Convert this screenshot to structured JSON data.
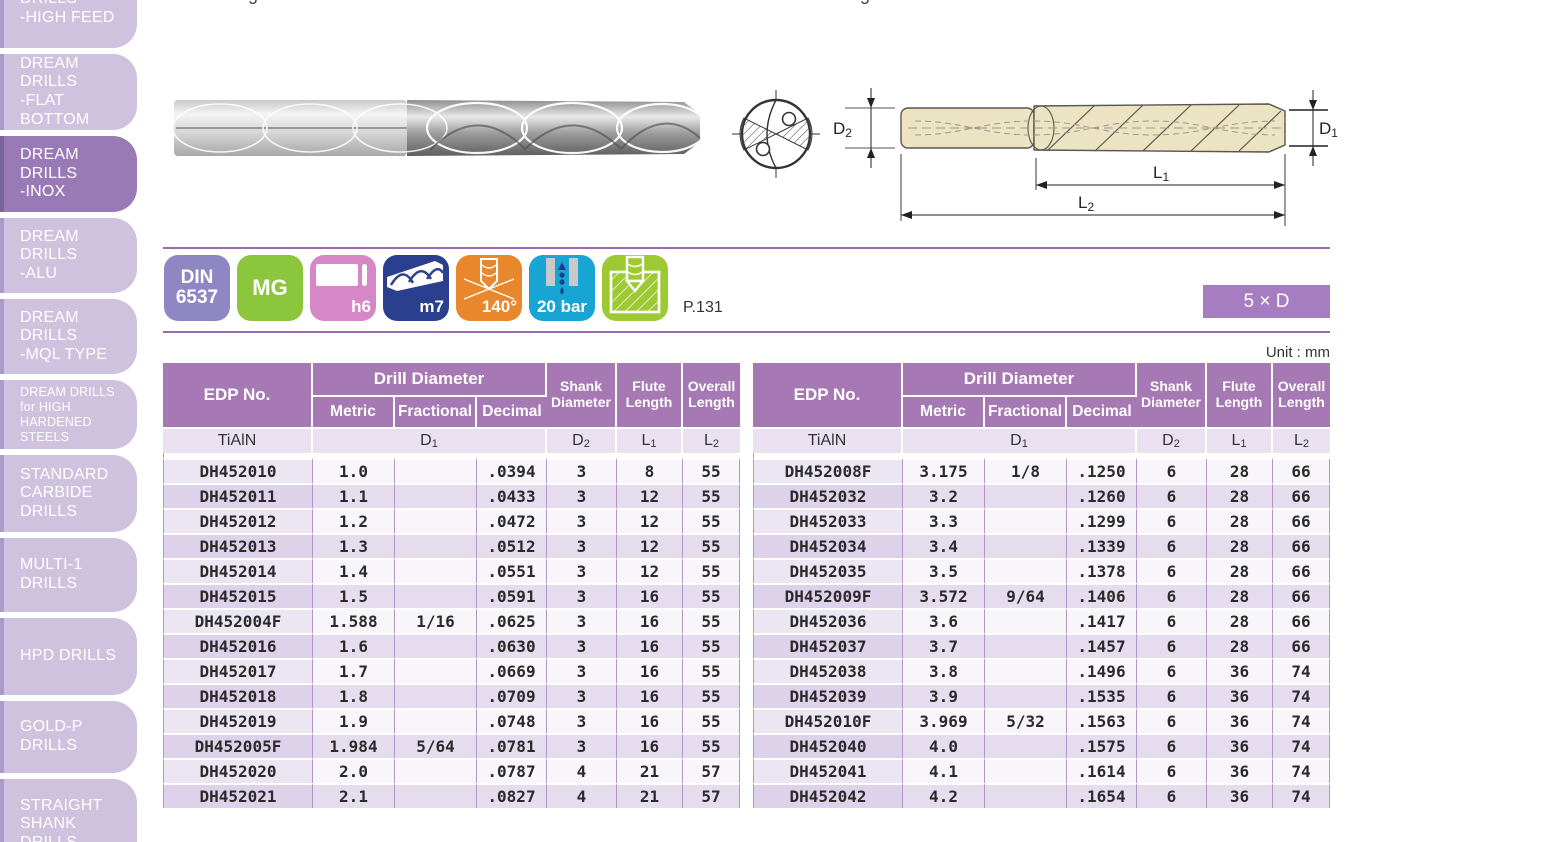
{
  "sidebar": {
    "items": [
      {
        "label": "DRILLS\n-HIGH FEED"
      },
      {
        "label": "DREAM\nDRILLS\n-FLAT BOTTOM"
      },
      {
        "label": "DREAM\nDRILLS\n-INOX",
        "active": true
      },
      {
        "label": "DREAM\nDRILLS\n-ALU"
      },
      {
        "label": "DREAM\nDRILLS\n-MQL TYPE"
      },
      {
        "label": "DREAM DRILLS\nfor HIGH\nHARDENED\nSTEELS",
        "small": true
      },
      {
        "label": "STANDARD\nCARBIDE\nDRILLS"
      },
      {
        "label": "MULTI-1\nDRILLS"
      },
      {
        "label": "HPD DRILLS"
      },
      {
        "label": "GOLD-P\nDRILLS"
      },
      {
        "label": "STRAIGHT\nSHANK\nDRILLS"
      }
    ]
  },
  "artifacts": {
    "cropped_fragments": [
      "g",
      "g"
    ]
  },
  "badges": [
    {
      "icon": "din-6537",
      "label": "DIN\n6537",
      "color": "#8e87c4"
    },
    {
      "icon": "mg-grade",
      "label": "MG",
      "color": "#8cc63c"
    },
    {
      "icon": "shank-tolerance",
      "label": "h6",
      "color": "#d687c5"
    },
    {
      "icon": "drill-tolerance",
      "label": "m7",
      "color": "#2b3f8f"
    },
    {
      "icon": "point-angle",
      "label": "140°",
      "color": "#e8872b"
    },
    {
      "icon": "coolant-pressure",
      "label": "20 bar",
      "color": "#18a5d4"
    },
    {
      "icon": "pocket-drilling",
      "label": "",
      "color": "#9dc933"
    }
  ],
  "page_ref": "P.131",
  "size_badge": "5 × D",
  "unit_label": "Unit : mm",
  "diagram_labels": {
    "d2": {
      "base": "D",
      "sub": "2"
    },
    "d1": {
      "base": "D",
      "sub": "1"
    },
    "l1": {
      "base": "L",
      "sub": "1"
    },
    "l2": {
      "base": "L",
      "sub": "2"
    }
  },
  "table_header": {
    "edp": "EDP No.",
    "drill_diameter": "Drill Diameter",
    "metric": "Metric",
    "fractional": "Fractional",
    "decimal": "Decimal",
    "shank": "Shank\nDiameter",
    "flute": "Flute\nLength",
    "overall": "Overall\nLength",
    "coating": "TiAlN",
    "d1": {
      "base": "D",
      "sub": "1"
    },
    "d2": {
      "base": "D",
      "sub": "2"
    },
    "l1": {
      "base": "L",
      "sub": "1"
    },
    "l2": {
      "base": "L",
      "sub": "2"
    }
  },
  "tables": {
    "left": {
      "rows": [
        [
          "DH452010",
          "1.0",
          "",
          ".0394",
          "3",
          "8",
          "55"
        ],
        [
          "DH452011",
          "1.1",
          "",
          ".0433",
          "3",
          "12",
          "55"
        ],
        [
          "DH452012",
          "1.2",
          "",
          ".0472",
          "3",
          "12",
          "55"
        ],
        [
          "DH452013",
          "1.3",
          "",
          ".0512",
          "3",
          "12",
          "55"
        ],
        [
          "DH452014",
          "1.4",
          "",
          ".0551",
          "3",
          "12",
          "55"
        ],
        [
          "DH452015",
          "1.5",
          "",
          ".0591",
          "3",
          "16",
          "55"
        ],
        [
          "DH452004F",
          "1.588",
          "1/16",
          ".0625",
          "3",
          "16",
          "55"
        ],
        [
          "DH452016",
          "1.6",
          "",
          ".0630",
          "3",
          "16",
          "55"
        ],
        [
          "DH452017",
          "1.7",
          "",
          ".0669",
          "3",
          "16",
          "55"
        ],
        [
          "DH452018",
          "1.8",
          "",
          ".0709",
          "3",
          "16",
          "55"
        ],
        [
          "DH452019",
          "1.9",
          "",
          ".0748",
          "3",
          "16",
          "55"
        ],
        [
          "DH452005F",
          "1.984",
          "5/64",
          ".0781",
          "3",
          "16",
          "55"
        ],
        [
          "DH452020",
          "2.0",
          "",
          ".0787",
          "4",
          "21",
          "57"
        ],
        [
          "DH452021",
          "2.1",
          "",
          ".0827",
          "4",
          "21",
          "57"
        ]
      ]
    },
    "right": {
      "rows": [
        [
          "DH452008F",
          "3.175",
          "1/8",
          ".1250",
          "6",
          "28",
          "66"
        ],
        [
          "DH452032",
          "3.2",
          "",
          ".1260",
          "6",
          "28",
          "66"
        ],
        [
          "DH452033",
          "3.3",
          "",
          ".1299",
          "6",
          "28",
          "66"
        ],
        [
          "DH452034",
          "3.4",
          "",
          ".1339",
          "6",
          "28",
          "66"
        ],
        [
          "DH452035",
          "3.5",
          "",
          ".1378",
          "6",
          "28",
          "66"
        ],
        [
          "DH452009F",
          "3.572",
          "9/64",
          ".1406",
          "6",
          "28",
          "66"
        ],
        [
          "DH452036",
          "3.6",
          "",
          ".1417",
          "6",
          "28",
          "66"
        ],
        [
          "DH452037",
          "3.7",
          "",
          ".1457",
          "6",
          "28",
          "66"
        ],
        [
          "DH452038",
          "3.8",
          "",
          ".1496",
          "6",
          "36",
          "74"
        ],
        [
          "DH452039",
          "3.9",
          "",
          ".1535",
          "6",
          "36",
          "74"
        ],
        [
          "DH452010F",
          "3.969",
          "5/32",
          ".1563",
          "6",
          "36",
          "74"
        ],
        [
          "DH452040",
          "4.0",
          "",
          ".1575",
          "6",
          "36",
          "74"
        ],
        [
          "DH452041",
          "4.1",
          "",
          ".1614",
          "6",
          "36",
          "74"
        ],
        [
          "DH452042",
          "4.2",
          "",
          ".1654",
          "6",
          "36",
          "74"
        ]
      ]
    }
  }
}
